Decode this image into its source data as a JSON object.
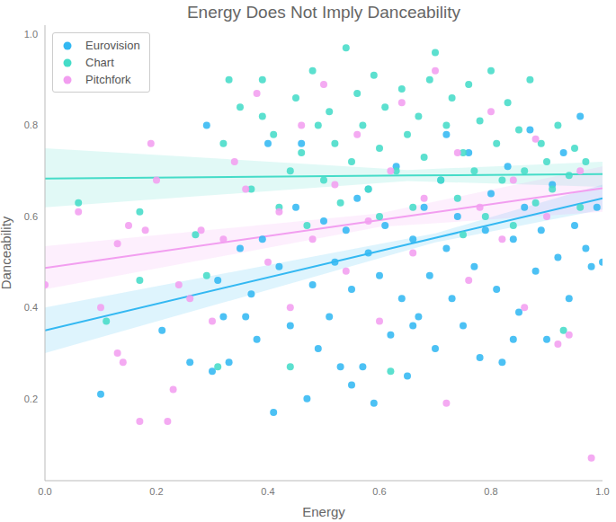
{
  "chart_data": {
    "type": "scatter",
    "title": "Energy Does Not Imply Danceability",
    "x_label": "Energy",
    "y_label": "Danceability",
    "xlim": [
      0,
      1
    ],
    "ylim": [
      0.02,
      1.02
    ],
    "xticks": [
      {
        "value": 0,
        "label": "0.0"
      },
      0.2,
      0.4,
      0.6,
      0.8,
      {
        "value": 1,
        "label": "1.0"
      }
    ],
    "yticks": [
      0.2,
      0.4,
      0.6,
      0.8,
      {
        "value": 1,
        "label": "1.0"
      }
    ],
    "grid": false,
    "legend": "upper left",
    "marker": "o",
    "series": [
      {
        "name": "Eurovision",
        "color": "#33b8f2",
        "x": [
          0.1,
          0.21,
          0.26,
          0.29,
          0.3,
          0.31,
          0.32,
          0.33,
          0.35,
          0.36,
          0.37,
          0.38,
          0.39,
          0.4,
          0.41,
          0.42,
          0.44,
          0.45,
          0.47,
          0.48,
          0.49,
          0.5,
          0.51,
          0.52,
          0.53,
          0.54,
          0.55,
          0.56,
          0.57,
          0.58,
          0.59,
          0.6,
          0.61,
          0.62,
          0.63,
          0.64,
          0.65,
          0.66,
          0.67,
          0.68,
          0.69,
          0.7,
          0.71,
          0.72,
          0.73,
          0.74,
          0.75,
          0.76,
          0.77,
          0.78,
          0.79,
          0.8,
          0.81,
          0.82,
          0.83,
          0.84,
          0.85,
          0.86,
          0.87,
          0.88,
          0.89,
          0.9,
          0.91,
          0.92,
          0.93,
          0.94,
          0.95,
          0.96,
          0.97,
          0.98,
          0.99,
          1.0,
          0.46,
          0.58,
          0.72,
          0.66,
          0.84,
          0.55
        ],
        "values": [
          0.21,
          0.35,
          0.28,
          0.8,
          0.26,
          0.46,
          0.38,
          0.28,
          0.53,
          0.38,
          0.43,
          0.33,
          0.55,
          0.76,
          0.17,
          0.49,
          0.36,
          0.62,
          0.2,
          0.45,
          0.31,
          0.59,
          0.38,
          0.5,
          0.27,
          0.57,
          0.44,
          0.64,
          0.27,
          0.52,
          0.19,
          0.47,
          0.58,
          0.34,
          0.71,
          0.42,
          0.25,
          0.55,
          0.38,
          0.62,
          0.47,
          0.31,
          0.68,
          0.53,
          0.42,
          0.6,
          0.36,
          0.74,
          0.49,
          0.29,
          0.57,
          0.65,
          0.44,
          0.28,
          0.71,
          0.55,
          0.39,
          0.62,
          0.79,
          0.48,
          0.57,
          0.33,
          0.67,
          0.51,
          0.74,
          0.42,
          0.58,
          0.82,
          0.53,
          0.49,
          0.62,
          0.5,
          0.76,
          0.66,
          0.78,
          0.36,
          0.33,
          0.23
        ],
        "fit": {
          "x": [
            0,
            0.7,
            1
          ],
          "values": [
            0.35,
            0.553,
            0.64
          ],
          "lower": [
            0.3,
            0.543,
            0.615
          ],
          "upper": [
            0.4,
            0.563,
            0.67
          ]
        }
      },
      {
        "name": "Chart",
        "color": "#45dcc8",
        "x": [
          0.06,
          0.11,
          0.17,
          0.17,
          0.27,
          0.29,
          0.31,
          0.32,
          0.33,
          0.35,
          0.37,
          0.39,
          0.39,
          0.41,
          0.42,
          0.44,
          0.45,
          0.46,
          0.47,
          0.48,
          0.49,
          0.5,
          0.51,
          0.52,
          0.53,
          0.54,
          0.55,
          0.56,
          0.57,
          0.58,
          0.59,
          0.6,
          0.61,
          0.62,
          0.63,
          0.64,
          0.65,
          0.66,
          0.67,
          0.68,
          0.69,
          0.7,
          0.71,
          0.72,
          0.73,
          0.74,
          0.75,
          0.76,
          0.77,
          0.78,
          0.79,
          0.8,
          0.81,
          0.82,
          0.83,
          0.84,
          0.85,
          0.86,
          0.87,
          0.88,
          0.89,
          0.9,
          0.91,
          0.92,
          0.93,
          0.94,
          0.95,
          0.96,
          0.97,
          0.44,
          0.6,
          0.75
        ],
        "values": [
          0.63,
          0.37,
          0.61,
          0.46,
          0.56,
          0.47,
          0.27,
          0.76,
          0.9,
          0.84,
          0.66,
          0.82,
          0.9,
          0.78,
          0.62,
          0.7,
          0.86,
          0.74,
          0.58,
          0.92,
          0.8,
          0.68,
          0.83,
          0.76,
          0.63,
          0.97,
          0.72,
          0.87,
          0.8,
          0.66,
          0.91,
          0.75,
          0.84,
          0.26,
          0.7,
          0.88,
          0.78,
          0.62,
          0.82,
          0.73,
          0.9,
          0.96,
          0.68,
          0.8,
          0.86,
          0.64,
          0.74,
          0.89,
          0.7,
          0.81,
          0.6,
          0.92,
          0.76,
          0.68,
          0.85,
          0.58,
          0.79,
          0.7,
          0.9,
          0.63,
          0.76,
          0.72,
          0.66,
          0.8,
          0.35,
          0.69,
          0.75,
          0.62,
          0.72,
          0.27,
          0.6,
          0.56
        ],
        "fit": {
          "x": [
            0,
            0.65,
            1
          ],
          "values": [
            0.683,
            0.69,
            0.693
          ],
          "lower": [
            0.62,
            0.678,
            0.665
          ],
          "upper": [
            0.75,
            0.702,
            0.72
          ]
        }
      },
      {
        "name": "Pitchfork",
        "color": "#f29ef0",
        "x": [
          0.0,
          0.06,
          0.1,
          0.13,
          0.13,
          0.14,
          0.15,
          0.17,
          0.18,
          0.19,
          0.2,
          0.22,
          0.23,
          0.24,
          0.26,
          0.28,
          0.3,
          0.32,
          0.34,
          0.36,
          0.38,
          0.4,
          0.42,
          0.44,
          0.46,
          0.48,
          0.5,
          0.52,
          0.54,
          0.56,
          0.58,
          0.6,
          0.62,
          0.64,
          0.66,
          0.68,
          0.7,
          0.72,
          0.74,
          0.76,
          0.78,
          0.8,
          0.82,
          0.84,
          0.86,
          0.88,
          0.9,
          0.92,
          0.94,
          0.96,
          0.98
        ],
        "values": [
          0.45,
          0.61,
          0.4,
          0.3,
          0.54,
          0.28,
          0.58,
          0.15,
          0.57,
          0.76,
          0.68,
          0.15,
          0.22,
          0.45,
          0.42,
          0.57,
          0.37,
          0.55,
          0.72,
          0.66,
          0.87,
          0.5,
          0.61,
          0.4,
          0.8,
          0.55,
          0.89,
          0.67,
          0.48,
          0.78,
          0.59,
          0.37,
          0.7,
          0.85,
          0.52,
          0.64,
          0.92,
          0.19,
          0.74,
          0.46,
          0.62,
          0.83,
          0.55,
          0.68,
          0.4,
          0.77,
          0.6,
          0.32,
          0.34,
          0.7,
          0.07
        ],
        "fit": {
          "x": [
            0,
            0.6,
            1
          ],
          "values": [
            0.487,
            0.592,
            0.662
          ],
          "lower": [
            0.44,
            0.577,
            0.61
          ],
          "upper": [
            0.535,
            0.607,
            0.71
          ]
        }
      }
    ]
  }
}
